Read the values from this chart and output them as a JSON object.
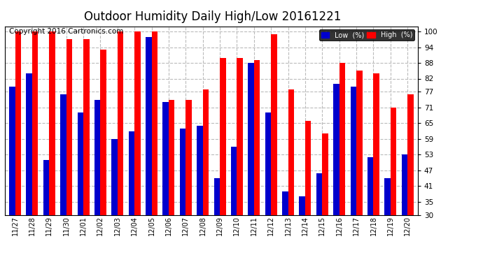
{
  "title": "Outdoor Humidity Daily High/Low 20161221",
  "copyright": "Copyright 2016 Cartronics.com",
  "dates": [
    "11/27",
    "11/28",
    "11/29",
    "11/30",
    "12/01",
    "12/02",
    "12/03",
    "12/04",
    "12/05",
    "12/06",
    "12/07",
    "12/08",
    "12/09",
    "12/10",
    "12/11",
    "12/12",
    "12/13",
    "12/14",
    "12/15",
    "12/16",
    "12/17",
    "12/18",
    "12/19",
    "12/20"
  ],
  "high": [
    100,
    100,
    100,
    97,
    97,
    93,
    100,
    100,
    100,
    74,
    74,
    78,
    90,
    90,
    89,
    99,
    78,
    66,
    61,
    88,
    85,
    84,
    71,
    76
  ],
  "low": [
    79,
    84,
    51,
    76,
    69,
    74,
    59,
    62,
    98,
    73,
    63,
    64,
    44,
    56,
    88,
    69,
    39,
    37,
    46,
    80,
    79,
    52,
    44,
    53
  ],
  "high_color": "#FF0000",
  "low_color": "#0000CC",
  "bg_color": "#FFFFFF",
  "plot_bg_color": "#FFFFFF",
  "grid_color": "#BBBBBB",
  "ylim_min": 30,
  "ylim_max": 102,
  "ybaseline": 30,
  "yticks": [
    30,
    35,
    41,
    47,
    53,
    59,
    65,
    71,
    77,
    82,
    88,
    94,
    100
  ],
  "legend_low_label": "Low  (%)",
  "legend_high_label": "High  (%)",
  "title_fontsize": 12,
  "copyright_fontsize": 7.5,
  "bar_width": 0.35
}
